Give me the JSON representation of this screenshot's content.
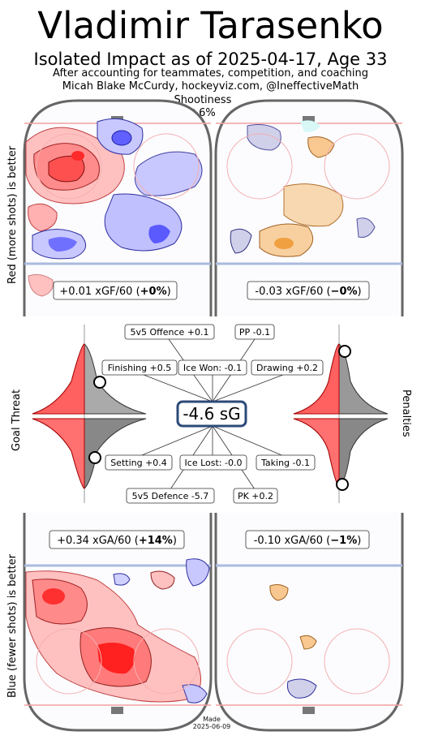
{
  "header": {
    "title": "Vladimir Tarasenko",
    "subtitle": "Isolated Impact as of 2025-04-17, Age 33",
    "note1": "After accounting for teammates, competition, and coaching",
    "note2": "Micah Blake McCurdy, hockeyviz.com, @IneffectiveMath",
    "shootiness_label": "Shootiness",
    "shootiness_value": "+6%"
  },
  "side_labels": {
    "red": "Red (more shots) is better",
    "blue": "Blue (fewer shots) is better",
    "goal_threat": "Goal Threat",
    "penalties": "Penalties"
  },
  "rinks": {
    "offense_5v5": {
      "text": "+0.01 xGF/60 (",
      "bold": "+0%",
      "close": ")"
    },
    "offense_pp": {
      "text": "-0.03 xGF/60 (",
      "bold": "−0%",
      "close": ")"
    },
    "defense_5v5": {
      "text": "+0.34 xGA/60 (",
      "bold": "+14%",
      "close": ")"
    },
    "defense_pk": {
      "text": "-0.10 xGA/60 (",
      "bold": "−1%",
      "close": ")"
    }
  },
  "center": {
    "total": "-4.6 sG",
    "total_value": -4.6
  },
  "components": {
    "offence_5v5": "5v5 Offence +0.1",
    "pp": "PP -0.1",
    "finishing": "Finishing +0.5",
    "ice_won": "Ice Won: -0.1",
    "drawing": "Drawing +0.2",
    "setting": "Setting +0.4",
    "ice_lost": "Ice Lost: -0.0",
    "taking": "Taking -0.1",
    "defence_5v5": "5v5 Defence -5.7",
    "pk": "PK +0.2"
  },
  "colors": {
    "red": "#ff0000",
    "blue": "#0000ff",
    "orange": "#f0a030",
    "lavender": "#c8c8e8",
    "total_border": "#2c4a78"
  },
  "chart_data": {
    "type": "table",
    "components": [
      {
        "name": "5v5 Offence",
        "value": 0.1
      },
      {
        "name": "PP",
        "value": -0.1
      },
      {
        "name": "Finishing",
        "value": 0.5
      },
      {
        "name": "Ice Won",
        "value": -0.1
      },
      {
        "name": "Drawing",
        "value": 0.2
      },
      {
        "name": "Setting",
        "value": 0.4
      },
      {
        "name": "Ice Lost",
        "value": 0.0
      },
      {
        "name": "Taking",
        "value": -0.1
      },
      {
        "name": "5v5 Defence",
        "value": -5.7
      },
      {
        "name": "PK",
        "value": 0.2
      }
    ],
    "total_sG": -4.6,
    "rates": [
      {
        "panel": "5v5 offence",
        "xGF_per_60": 0.01,
        "pct": 0
      },
      {
        "panel": "PP",
        "xGF_per_60": -0.03,
        "pct": 0
      },
      {
        "panel": "5v5 defence",
        "xGA_per_60": 0.34,
        "pct": 14
      },
      {
        "panel": "PK",
        "xGA_per_60": -0.1,
        "pct": -1
      }
    ],
    "shootiness_pct": 6,
    "distribution_markers": {
      "finishing_percentile": 0.62,
      "setting_percentile": 0.8,
      "drawing_percentile": 0.45,
      "taking_percentile": 0.55
    }
  },
  "footer": {
    "made": "Made",
    "date": "2025-06-09"
  }
}
